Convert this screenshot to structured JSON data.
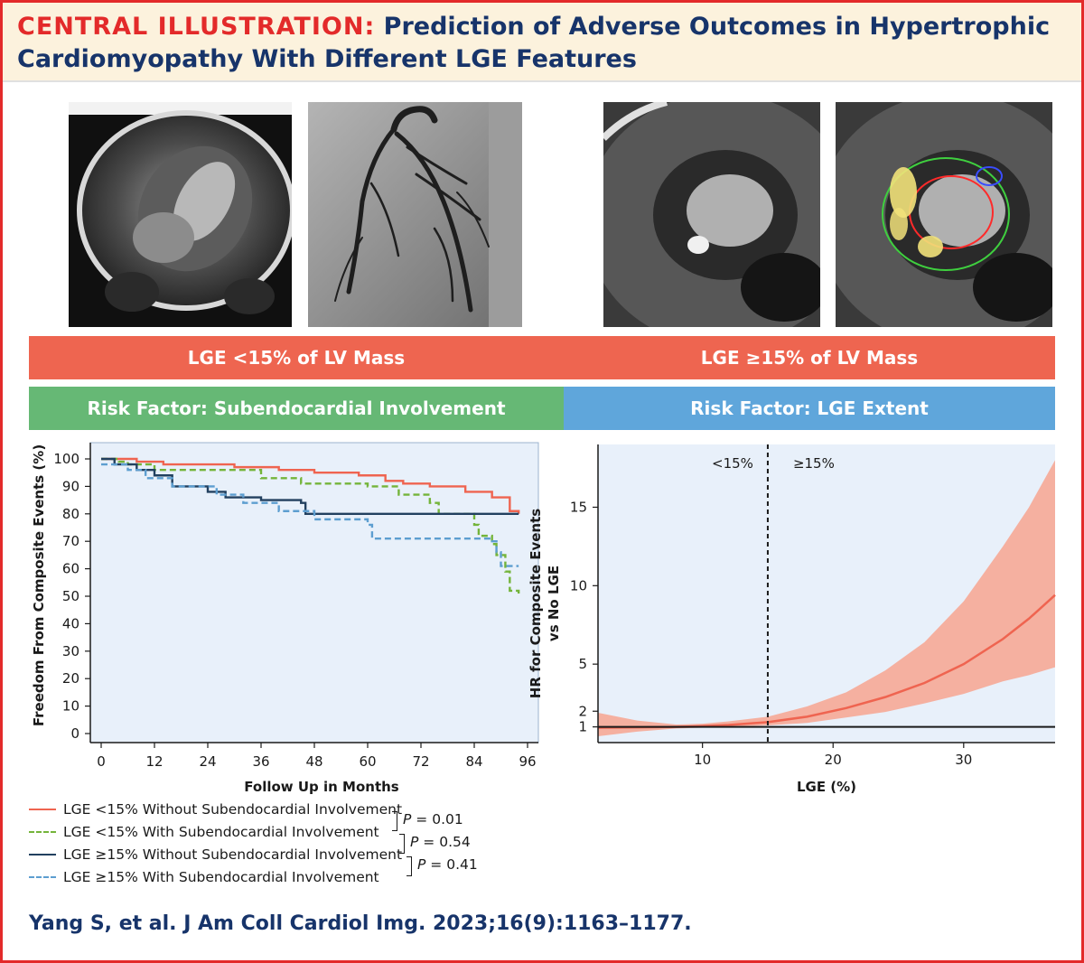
{
  "header": {
    "title_prefix": "CENTRAL ILLUSTRATION:",
    "title_line1_rest": " Prediction of Adverse Outcomes in Hypertrophic",
    "title_line2": "Cardiomyopathy With Different LGE Features"
  },
  "bands": {
    "left_group": "LGE <15% of LV Mass",
    "right_group": "LGE ≥15% of LV Mass",
    "left_risk": "Risk Factor: Subendocardial Involvement",
    "right_risk": "Risk Factor: LGE Extent"
  },
  "colors": {
    "red_line": "#ef6450",
    "green_dashed": "#74b43a",
    "navy_line": "#22405f",
    "blue_dashed": "#5d9ed0",
    "band_red": "#ee6550",
    "band_green": "#66b875",
    "band_blue": "#5fa6db",
    "plot_bg": "#e8f0fa",
    "ci_fill": "#f5b0a0"
  },
  "chart_data": [
    {
      "type": "line",
      "subtype": "kaplan-meier-step",
      "xlabel": "Follow Up in Months",
      "ylabel": "Freedom From Composite Events (%)",
      "xlim": [
        0,
        96
      ],
      "ylim": [
        0,
        100
      ],
      "x_ticks": [
        0,
        12,
        24,
        36,
        48,
        60,
        72,
        84,
        96
      ],
      "y_ticks": [
        0,
        10,
        20,
        30,
        40,
        50,
        60,
        70,
        80,
        90,
        100
      ],
      "series": [
        {
          "name": "LGE <15% Without Subendocardial Involvement",
          "style": "solid",
          "color": "#ef6450",
          "points": [
            [
              0,
              100
            ],
            [
              8,
              99
            ],
            [
              14,
              98
            ],
            [
              30,
              97
            ],
            [
              40,
              96
            ],
            [
              48,
              95
            ],
            [
              58,
              94
            ],
            [
              64,
              92
            ],
            [
              68,
              91
            ],
            [
              74,
              90
            ],
            [
              82,
              88
            ],
            [
              88,
              86
            ],
            [
              92,
              81
            ],
            [
              94,
              80
            ]
          ]
        },
        {
          "name": "LGE <15% With Subendocardial Involvement",
          "style": "dashed",
          "color": "#74b43a",
          "points": [
            [
              0,
              100
            ],
            [
              4,
              99
            ],
            [
              6,
              98
            ],
            [
              12,
              96
            ],
            [
              36,
              93
            ],
            [
              45,
              91
            ],
            [
              60,
              90
            ],
            [
              67,
              87
            ],
            [
              74,
              84
            ],
            [
              76,
              80
            ],
            [
              84,
              76
            ],
            [
              85,
              72
            ],
            [
              88,
              69
            ],
            [
              89,
              65
            ],
            [
              91,
              59
            ],
            [
              92,
              52
            ],
            [
              94,
              51
            ]
          ]
        },
        {
          "name": "LGE ≥15% Without Subendocardial Involvement",
          "style": "solid",
          "color": "#22405f",
          "points": [
            [
              0,
              100
            ],
            [
              3,
              98
            ],
            [
              8,
              96
            ],
            [
              12,
              94
            ],
            [
              16,
              90
            ],
            [
              24,
              88
            ],
            [
              28,
              86
            ],
            [
              36,
              85
            ],
            [
              45,
              84
            ],
            [
              46,
              80
            ],
            [
              94,
              80
            ]
          ]
        },
        {
          "name": "LGE ≥15% With Subendocardial Involvement",
          "style": "dashed",
          "color": "#5d9ed0",
          "points": [
            [
              0,
              98
            ],
            [
              6,
              96
            ],
            [
              10,
              93
            ],
            [
              16,
              90
            ],
            [
              26,
              87
            ],
            [
              32,
              84
            ],
            [
              40,
              81
            ],
            [
              48,
              78
            ],
            [
              60,
              76
            ],
            [
              61,
              71
            ],
            [
              88,
              70
            ],
            [
              89,
              66
            ],
            [
              90,
              61
            ],
            [
              94,
              61
            ]
          ]
        }
      ],
      "p_values": [
        "P = 0.01",
        "P = 0.54",
        "P = 0.41"
      ],
      "p_symbol": "P",
      "p_values_numeric": [
        "= 0.01",
        "= 0.54",
        "= 0.41"
      ]
    },
    {
      "type": "line",
      "subtype": "hazard-ratio-curve-with-ci",
      "xlabel": "LGE (%)",
      "ylabel_line1": "HR for Composite Events",
      "ylabel_line2": "vs No LGE",
      "xlim": [
        2,
        37
      ],
      "ylim": [
        0,
        19
      ],
      "x_ticks": [
        10,
        20,
        30
      ],
      "y_ticks": [
        1,
        2,
        5,
        10,
        15
      ],
      "reference_line_y": 1,
      "cutoff_x": 15,
      "region_labels": [
        "<15%",
        "≥15%"
      ],
      "series": [
        {
          "name": "HR",
          "color": "#ef6450",
          "x": [
            2,
            5,
            8,
            10,
            12,
            15,
            18,
            21,
            24,
            27,
            30,
            33,
            35,
            37
          ],
          "y": [
            0.95,
            0.97,
            1.0,
            1.05,
            1.12,
            1.3,
            1.65,
            2.2,
            2.9,
            3.8,
            5.0,
            6.6,
            7.9,
            9.4
          ]
        }
      ],
      "ci_upper": [
        1.9,
        1.4,
        1.15,
        1.2,
        1.35,
        1.65,
        2.3,
        3.2,
        4.6,
        6.4,
        9.0,
        12.5,
        15.0,
        18.0
      ],
      "ci_lower": [
        0.4,
        0.7,
        0.9,
        0.95,
        1.0,
        1.1,
        1.25,
        1.6,
        1.95,
        2.5,
        3.1,
        3.9,
        4.3,
        4.8
      ]
    }
  ],
  "citation": "Yang S, et al. J Am Coll Cardiol Img. 2023;16(9):1163–1177."
}
